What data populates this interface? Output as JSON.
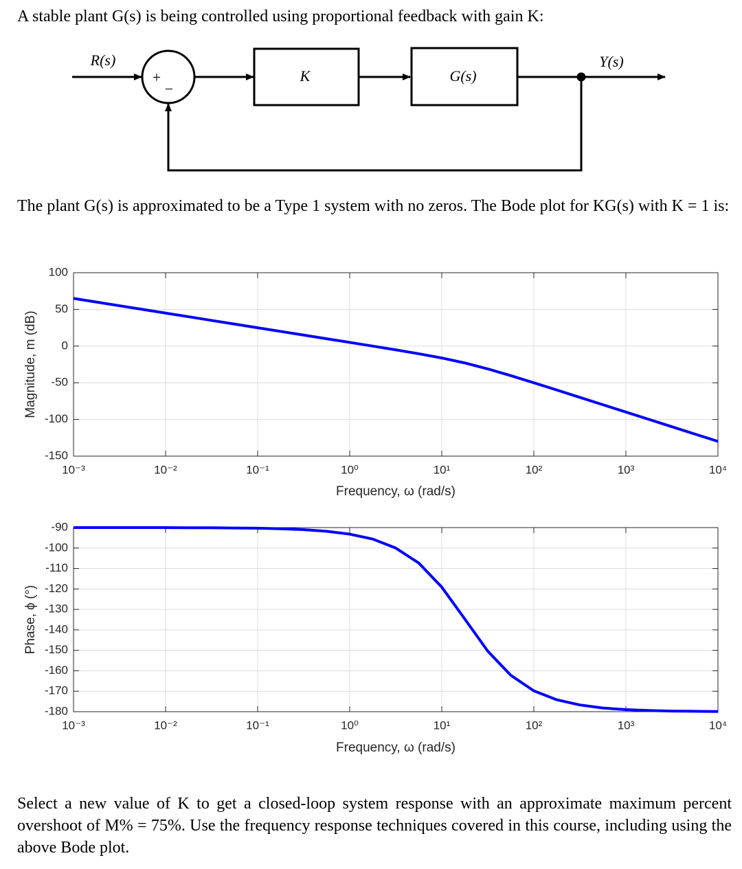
{
  "intro": "A stable plant G(s) is being controlled using proportional feedback with gain K:",
  "diagram": {
    "input_label": "R(s)",
    "plus_sign": "+",
    "minus_sign": "−",
    "controller_label": "K",
    "plant_label": "G(s)",
    "output_label": "Y(s)"
  },
  "plant_text": "The plant G(s) is approximated to be a Type 1 system with no zeros. The Bode plot for KG(s) with K = 1 is:",
  "chart_data": [
    {
      "type": "line",
      "x_label": "Frequency, ω (rad/s)",
      "y_label": "Magnitude, m (dB)",
      "log_x": true,
      "grid": true,
      "xlim": [
        0.001,
        10000
      ],
      "xticks": [
        {
          "value": 0.001,
          "label": "10⁻³"
        },
        {
          "value": 0.01,
          "label": "10⁻²"
        },
        {
          "value": 0.1,
          "label": "10⁻¹"
        },
        {
          "value": 1,
          "label": "10⁰"
        },
        {
          "value": 10,
          "label": "10¹"
        },
        {
          "value": 100,
          "label": "10²"
        },
        {
          "value": 1000,
          "label": "10³"
        },
        {
          "value": 10000,
          "label": "10⁴"
        }
      ],
      "ylim": [
        -150,
        100
      ],
      "yticks": [
        -150,
        -100,
        -50,
        0,
        50,
        100
      ],
      "x": [
        0.001,
        0.00178,
        0.00316,
        0.00562,
        0.01,
        0.0178,
        0.0316,
        0.0562,
        0.1,
        0.178,
        0.316,
        0.562,
        1,
        1.78,
        3.16,
        5.62,
        10,
        17.8,
        31.6,
        56.2,
        100,
        178,
        316,
        562,
        1000,
        1780,
        3160,
        5620,
        10000
      ],
      "series": [
        {
          "color": "#0000ff",
          "values": [
            65,
            60,
            55,
            50,
            45,
            40,
            35,
            30,
            25,
            20,
            15,
            10,
            5,
            0,
            -5.1,
            -10.4,
            -16.2,
            -23,
            -31.1,
            -40.3,
            -50,
            -59.9,
            -69.9,
            -79.9,
            -89.9,
            -99.9,
            -109.9,
            -119.9,
            -129.9
          ]
        }
      ]
    },
    {
      "type": "line",
      "x_label": "Frequency, ω (rad/s)",
      "y_label": "Phase, ϕ (°)",
      "log_x": true,
      "grid": true,
      "xlim": [
        0.001,
        10000
      ],
      "xticks": [
        {
          "value": 0.001,
          "label": "10⁻³"
        },
        {
          "value": 0.01,
          "label": "10⁻²"
        },
        {
          "value": 0.1,
          "label": "10⁻¹"
        },
        {
          "value": 1,
          "label": "10⁰"
        },
        {
          "value": 10,
          "label": "10¹"
        },
        {
          "value": 100,
          "label": "10²"
        },
        {
          "value": 1000,
          "label": "10³"
        },
        {
          "value": 10000,
          "label": "10⁴"
        }
      ],
      "ylim": [
        -180,
        -90
      ],
      "yticks": [
        -180,
        -170,
        -160,
        -150,
        -140,
        -130,
        -120,
        -110,
        -100,
        -90
      ],
      "x": [
        0.001,
        0.00178,
        0.00316,
        0.00562,
        0.01,
        0.0178,
        0.0316,
        0.0562,
        0.1,
        0.178,
        0.316,
        0.562,
        1,
        1.78,
        3.16,
        5.62,
        10,
        17.8,
        31.6,
        56.2,
        100,
        178,
        316,
        562,
        1000,
        1780,
        3160,
        5620,
        10000
      ],
      "series": [
        {
          "color": "#0000ff",
          "values": [
            -90,
            -90,
            -90,
            -90,
            -90,
            -90.1,
            -90.1,
            -90.2,
            -90.3,
            -90.6,
            -91,
            -91.8,
            -93.2,
            -95.6,
            -100,
            -107.3,
            -119.1,
            -134.7,
            -150.4,
            -162.2,
            -169.8,
            -174.2,
            -176.7,
            -178.2,
            -179,
            -179.4,
            -179.7,
            -179.8,
            -179.9
          ]
        }
      ]
    }
  ],
  "question": "Select a new value of K to get a closed-loop system response with an approximate maximum percent overshoot of M% = 75%. Use the frequency response techniques covered in this course, including using the above Bode plot."
}
